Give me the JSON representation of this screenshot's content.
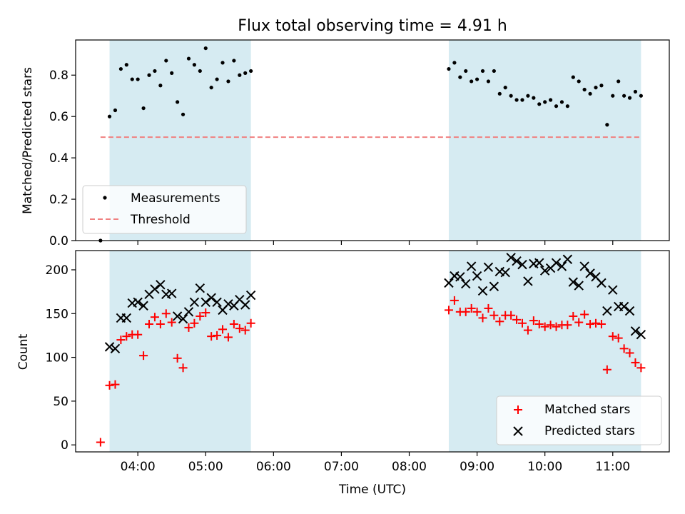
{
  "chart_data": [
    {
      "type": "scatter",
      "title": "Flux total observing time = 4.91 h",
      "ylabel": "Matched/Predicted stars",
      "xlabel": "",
      "ylim": [
        0,
        0.97
      ],
      "yticks": [
        0.0,
        0.2,
        0.4,
        0.6,
        0.8
      ],
      "ytick_labels": [
        "0.0",
        "0.2",
        "0.4",
        "0.6",
        "0.8"
      ],
      "observing_windows": [
        [
          "03:35",
          "05:40"
        ],
        [
          "08:35",
          "11:25"
        ]
      ],
      "legend_position": "lower-left",
      "series": [
        {
          "name": "Measurements",
          "marker": "dot",
          "color": "#000000",
          "points": [
            [
              "03:27",
              0.0
            ],
            [
              "03:35",
              0.6
            ],
            [
              "03:40",
              0.63
            ],
            [
              "03:45",
              0.83
            ],
            [
              "03:50",
              0.85
            ],
            [
              "03:55",
              0.78
            ],
            [
              "04:00",
              0.78
            ],
            [
              "04:05",
              0.64
            ],
            [
              "04:10",
              0.8
            ],
            [
              "04:15",
              0.82
            ],
            [
              "04:20",
              0.75
            ],
            [
              "04:25",
              0.87
            ],
            [
              "04:30",
              0.81
            ],
            [
              "04:35",
              0.67
            ],
            [
              "04:40",
              0.61
            ],
            [
              "04:45",
              0.88
            ],
            [
              "04:50",
              0.85
            ],
            [
              "04:55",
              0.82
            ],
            [
              "05:00",
              0.93
            ],
            [
              "05:05",
              0.74
            ],
            [
              "05:10",
              0.78
            ],
            [
              "05:15",
              0.86
            ],
            [
              "05:20",
              0.77
            ],
            [
              "05:25",
              0.87
            ],
            [
              "05:30",
              0.8
            ],
            [
              "05:35",
              0.81
            ],
            [
              "05:40",
              0.82
            ],
            [
              "08:35",
              0.83
            ],
            [
              "08:40",
              0.86
            ],
            [
              "08:45",
              0.79
            ],
            [
              "08:50",
              0.82
            ],
            [
              "08:55",
              0.77
            ],
            [
              "09:00",
              0.78
            ],
            [
              "09:05",
              0.82
            ],
            [
              "09:10",
              0.77
            ],
            [
              "09:15",
              0.82
            ],
            [
              "09:20",
              0.71
            ],
            [
              "09:25",
              0.74
            ],
            [
              "09:30",
              0.7
            ],
            [
              "09:35",
              0.68
            ],
            [
              "09:40",
              0.68
            ],
            [
              "09:45",
              0.7
            ],
            [
              "09:50",
              0.69
            ],
            [
              "09:55",
              0.66
            ],
            [
              "10:00",
              0.67
            ],
            [
              "10:05",
              0.68
            ],
            [
              "10:10",
              0.65
            ],
            [
              "10:15",
              0.67
            ],
            [
              "10:20",
              0.65
            ],
            [
              "10:25",
              0.79
            ],
            [
              "10:30",
              0.77
            ],
            [
              "10:35",
              0.73
            ],
            [
              "10:40",
              0.71
            ],
            [
              "10:45",
              0.74
            ],
            [
              "10:50",
              0.75
            ],
            [
              "10:55",
              0.56
            ],
            [
              "11:00",
              0.7
            ],
            [
              "11:05",
              0.77
            ],
            [
              "11:10",
              0.7
            ],
            [
              "11:15",
              0.69
            ],
            [
              "11:20",
              0.72
            ],
            [
              "11:25",
              0.7
            ]
          ]
        },
        {
          "name": "Threshold",
          "marker": "dashed-line",
          "color": "#f08080",
          "points": [
            [
              "03:27",
              0.5
            ],
            [
              "11:25",
              0.5
            ]
          ]
        }
      ]
    },
    {
      "type": "scatter",
      "title": "",
      "ylabel": "Count",
      "xlabel": "Time (UTC)",
      "ylim": [
        -8,
        222
      ],
      "yticks": [
        0,
        50,
        100,
        150,
        200
      ],
      "ytick_labels": [
        "0",
        "50",
        "100",
        "150",
        "200"
      ],
      "xlim": [
        "03:05",
        "11:50"
      ],
      "xticks": [
        "04:00",
        "05:00",
        "06:00",
        "07:00",
        "08:00",
        "09:00",
        "10:00",
        "11:00"
      ],
      "xtick_labels": [
        "04:00",
        "05:00",
        "06:00",
        "07:00",
        "08:00",
        "09:00",
        "10:00",
        "11:00"
      ],
      "observing_windows": [
        [
          "03:35",
          "05:40"
        ],
        [
          "08:35",
          "11:25"
        ]
      ],
      "legend_position": "lower-right",
      "series": [
        {
          "name": "Matched stars",
          "marker": "plus",
          "color": "#ff0000",
          "points": [
            [
              "03:27",
              3
            ],
            [
              "03:35",
              68
            ],
            [
              "03:40",
              69
            ],
            [
              "03:45",
              120
            ],
            [
              "03:50",
              124
            ],
            [
              "03:55",
              126
            ],
            [
              "04:00",
              126
            ],
            [
              "04:05",
              102
            ],
            [
              "04:10",
              138
            ],
            [
              "04:15",
              146
            ],
            [
              "04:20",
              138
            ],
            [
              "04:25",
              150
            ],
            [
              "04:30",
              140
            ],
            [
              "04:35",
              99
            ],
            [
              "04:40",
              88
            ],
            [
              "04:45",
              134
            ],
            [
              "04:50",
              139
            ],
            [
              "04:55",
              147
            ],
            [
              "05:00",
              151
            ],
            [
              "05:05",
              124
            ],
            [
              "05:10",
              125
            ],
            [
              "05:15",
              132
            ],
            [
              "05:20",
              123
            ],
            [
              "05:25",
              138
            ],
            [
              "05:30",
              133
            ],
            [
              "05:35",
              131
            ],
            [
              "05:40",
              139
            ],
            [
              "08:35",
              154
            ],
            [
              "08:40",
              165
            ],
            [
              "08:45",
              152
            ],
            [
              "08:50",
              152
            ],
            [
              "08:55",
              156
            ],
            [
              "09:00",
              152
            ],
            [
              "09:05",
              145
            ],
            [
              "09:10",
              156
            ],
            [
              "09:15",
              148
            ],
            [
              "09:20",
              141
            ],
            [
              "09:25",
              148
            ],
            [
              "09:30",
              148
            ],
            [
              "09:35",
              143
            ],
            [
              "09:40",
              139
            ],
            [
              "09:45",
              131
            ],
            [
              "09:50",
              142
            ],
            [
              "09:55",
              138
            ],
            [
              "10:00",
              135
            ],
            [
              "10:05",
              137
            ],
            [
              "10:10",
              135
            ],
            [
              "10:15",
              137
            ],
            [
              "10:20",
              137
            ],
            [
              "10:25",
              147
            ],
            [
              "10:30",
              140
            ],
            [
              "10:35",
              149
            ],
            [
              "10:40",
              138
            ],
            [
              "10:45",
              139
            ],
            [
              "10:50",
              138
            ],
            [
              "10:55",
              86
            ],
            [
              "11:00",
              124
            ],
            [
              "11:05",
              122
            ],
            [
              "11:10",
              110
            ],
            [
              "11:15",
              105
            ],
            [
              "11:20",
              94
            ],
            [
              "11:25",
              88
            ]
          ]
        },
        {
          "name": "Predicted stars",
          "marker": "x",
          "color": "#000000",
          "points": [
            [
              "03:35",
              112
            ],
            [
              "03:40",
              110
            ],
            [
              "03:45",
              145
            ],
            [
              "03:50",
              145
            ],
            [
              "03:55",
              162
            ],
            [
              "04:00",
              163
            ],
            [
              "04:05",
              159
            ],
            [
              "04:10",
              172
            ],
            [
              "04:15",
              178
            ],
            [
              "04:20",
              183
            ],
            [
              "04:25",
              172
            ],
            [
              "04:30",
              173
            ],
            [
              "04:35",
              147
            ],
            [
              "04:40",
              144
            ],
            [
              "04:45",
              152
            ],
            [
              "04:50",
              163
            ],
            [
              "04:55",
              179
            ],
            [
              "05:00",
              163
            ],
            [
              "05:05",
              168
            ],
            [
              "05:10",
              163
            ],
            [
              "05:15",
              154
            ],
            [
              "05:20",
              161
            ],
            [
              "05:25",
              159
            ],
            [
              "05:30",
              166
            ],
            [
              "05:35",
              160
            ],
            [
              "05:40",
              171
            ],
            [
              "08:35",
              185
            ],
            [
              "08:40",
              193
            ],
            [
              "08:45",
              192
            ],
            [
              "08:50",
              184
            ],
            [
              "08:55",
              204
            ],
            [
              "09:00",
              193
            ],
            [
              "09:05",
              176
            ],
            [
              "09:10",
              203
            ],
            [
              "09:15",
              181
            ],
            [
              "09:20",
              198
            ],
            [
              "09:25",
              197
            ],
            [
              "09:30",
              214
            ],
            [
              "09:35",
              210
            ],
            [
              "09:40",
              206
            ],
            [
              "09:45",
              187
            ],
            [
              "09:50",
              207
            ],
            [
              "09:55",
              208
            ],
            [
              "10:00",
              199
            ],
            [
              "10:05",
              202
            ],
            [
              "10:10",
              208
            ],
            [
              "10:15",
              204
            ],
            [
              "10:20",
              212
            ],
            [
              "10:25",
              186
            ],
            [
              "10:30",
              182
            ],
            [
              "10:35",
              204
            ],
            [
              "10:40",
              196
            ],
            [
              "10:45",
              192
            ],
            [
              "10:50",
              185
            ],
            [
              "10:55",
              153
            ],
            [
              "11:00",
              177
            ],
            [
              "11:05",
              158
            ],
            [
              "11:10",
              158
            ],
            [
              "11:15",
              153
            ],
            [
              "11:20",
              130
            ],
            [
              "11:25",
              126
            ]
          ]
        }
      ]
    }
  ],
  "style": {
    "window_fill": "#add8e6",
    "frame_color": "#000000"
  }
}
